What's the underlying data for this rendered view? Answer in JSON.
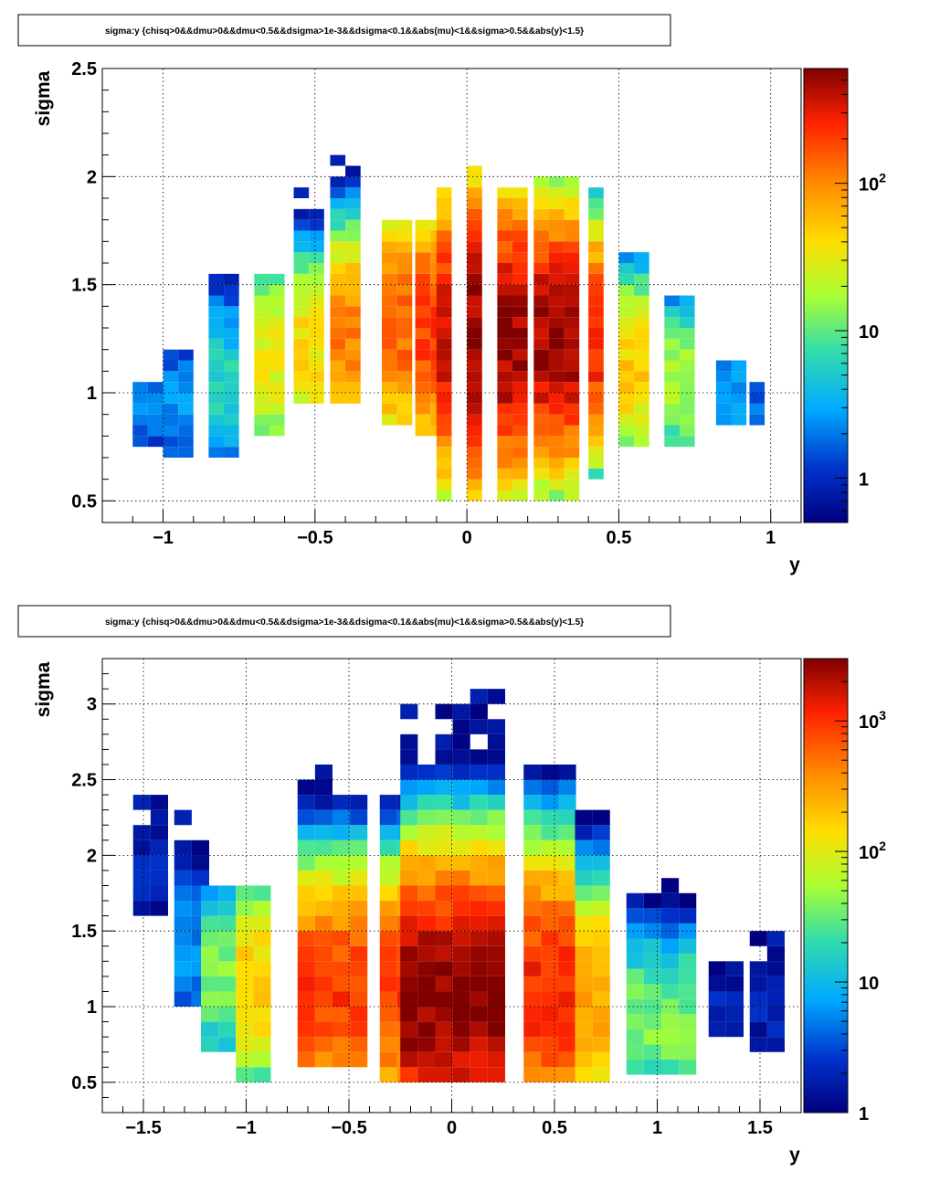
{
  "chart_data": [
    {
      "type": "heatmap",
      "title": "sigma:y {chisq>0&&dmu>0&&dmu<0.5&&dsigma>1e-3&&dsigma<0.1&&abs(mu)<1&&sigma>0.5&&abs(y)<1.5}",
      "xlabel": "y",
      "ylabel": "sigma",
      "xlim": [
        -1.2,
        1.1
      ],
      "ylim": [
        0.4,
        2.5
      ],
      "xticks": [
        -1,
        -0.5,
        0,
        0.5,
        1
      ],
      "xtick_labels": [
        "−1",
        "−0.5",
        "0",
        "0.5",
        "1"
      ],
      "yticks": [
        0.5,
        1,
        1.5,
        2,
        2.5
      ],
      "ytick_labels": [
        "0.5",
        "1",
        "1.5",
        "2",
        "2.5"
      ],
      "grid": true,
      "colorbar": {
        "scale": "log",
        "min": 0.5,
        "max": 600,
        "ticks": [
          1,
          10,
          100
        ],
        "tick_labels": [
          "1",
          "10",
          "10^2"
        ]
      },
      "bin_width": {
        "x": 0.05,
        "y": 0.05
      },
      "clusters": [
        {
          "x": -1.05,
          "x_range": [
            -1.1,
            -1.0
          ],
          "mean": 0.95,
          "sd": 0.2,
          "peak": 2,
          "y_range": [
            0.75,
            1.05
          ]
        },
        {
          "x": -0.95,
          "x_range": [
            -1.0,
            -0.9
          ],
          "mean": 0.95,
          "sd": 0.22,
          "peak": 2.5,
          "y_range": [
            0.7,
            1.2
          ]
        },
        {
          "x": -0.8,
          "x_range": [
            -0.85,
            -0.75
          ],
          "mean": 1.05,
          "sd": 0.25,
          "peak": 6,
          "y_range": [
            0.7,
            1.55
          ]
        },
        {
          "x": -0.65,
          "x_range": [
            -0.7,
            -0.6
          ],
          "mean": 1.15,
          "sd": 0.22,
          "peak": 35,
          "y_range": [
            0.8,
            1.55
          ]
        },
        {
          "x": -0.53,
          "x_range": [
            -0.57,
            -0.5
          ],
          "mean": 1.2,
          "sd": 0.22,
          "peak": 45,
          "y_range": [
            0.95,
            1.95
          ]
        },
        {
          "x": -0.4,
          "x_range": [
            -0.45,
            -0.35
          ],
          "mean": 1.25,
          "sd": 0.24,
          "peak": 110,
          "y_range": [
            0.95,
            2.1
          ]
        },
        {
          "x": -0.25,
          "x_range": [
            -0.28,
            -0.22
          ],
          "mean": 1.3,
          "sd": 0.26,
          "peak": 150,
          "y_range": [
            0.85,
            1.8
          ]
        },
        {
          "x": -0.15,
          "x_range": [
            -0.17,
            -0.1
          ],
          "mean": 1.3,
          "sd": 0.26,
          "peak": 220,
          "y_range": [
            0.8,
            1.8
          ]
        },
        {
          "x": -0.08,
          "x_range": [
            -0.1,
            -0.05
          ],
          "mean": 1.25,
          "sd": 0.3,
          "peak": 400,
          "y_range": [
            0.5,
            1.95
          ]
        },
        {
          "x": 0.03,
          "x_range": [
            0.0,
            0.05
          ],
          "mean": 1.25,
          "sd": 0.32,
          "peak": 600,
          "y_range": [
            0.5,
            2.05
          ]
        },
        {
          "x": 0.15,
          "x_range": [
            0.1,
            0.2
          ],
          "mean": 1.25,
          "sd": 0.3,
          "peak": 550,
          "y_range": [
            0.5,
            1.95
          ]
        },
        {
          "x": 0.28,
          "x_range": [
            0.22,
            0.35
          ],
          "mean": 1.25,
          "sd": 0.28,
          "peak": 500,
          "y_range": [
            0.5,
            2.0
          ]
        },
        {
          "x": 0.43,
          "x_range": [
            0.4,
            0.45
          ],
          "mean": 1.25,
          "sd": 0.24,
          "peak": 300,
          "y_range": [
            0.6,
            1.95
          ]
        },
        {
          "x": 0.55,
          "x_range": [
            0.5,
            0.6
          ],
          "mean": 1.1,
          "sd": 0.22,
          "peak": 50,
          "y_range": [
            0.75,
            1.65
          ]
        },
        {
          "x": 0.68,
          "x_range": [
            0.65,
            0.75
          ],
          "mean": 1.05,
          "sd": 0.2,
          "peak": 18,
          "y_range": [
            0.75,
            1.45
          ]
        },
        {
          "x": 0.85,
          "x_range": [
            0.82,
            0.88
          ],
          "mean": 1.0,
          "sd": 0.18,
          "peak": 3,
          "y_range": [
            0.85,
            1.15
          ]
        },
        {
          "x": 0.95,
          "x_range": [
            0.93,
            0.98
          ],
          "mean": 0.95,
          "sd": 0.15,
          "peak": 2,
          "y_range": [
            0.85,
            1.05
          ]
        }
      ]
    },
    {
      "type": "heatmap",
      "title": "sigma:y {chisq>0&&dmu>0&&dmu<0.5&&dsigma>1e-3&&dsigma<0.1&&abs(mu)<1&&sigma>0.5&&abs(y)<1.5}",
      "xlabel": "y",
      "ylabel": "sigma",
      "xlim": [
        -1.7,
        1.7
      ],
      "ylim": [
        0.3,
        3.3
      ],
      "xticks": [
        -1.5,
        -1,
        -0.5,
        0,
        0.5,
        1,
        1.5
      ],
      "xtick_labels": [
        "−1.5",
        "−1",
        "−0.5",
        "0",
        "0.5",
        "1",
        "1.5"
      ],
      "yticks": [
        0.5,
        1,
        1.5,
        2,
        2.5,
        3
      ],
      "ytick_labels": [
        "0.5",
        "1",
        "1.5",
        "2",
        "2.5",
        "3"
      ],
      "grid": true,
      "colorbar": {
        "scale": "log",
        "min": 1,
        "max": 3000,
        "ticks": [
          10,
          100,
          1000
        ],
        "tick_labels": [
          "10",
          "10^2",
          "10^3"
        ],
        "bottom_label": "1"
      },
      "bin_width": {
        "x": 0.085,
        "y": 0.1
      },
      "clusters": [
        {
          "x": -1.5,
          "x_range": [
            -1.55,
            -1.45
          ],
          "mean": 1.9,
          "sd": 0.3,
          "peak": 2,
          "y_range": [
            1.6,
            2.4
          ]
        },
        {
          "x": -1.3,
          "x_range": [
            -1.35,
            -1.25
          ],
          "mean": 1.4,
          "sd": 0.35,
          "peak": 6,
          "y_range": [
            1.0,
            2.3
          ]
        },
        {
          "x": -1.13,
          "x_range": [
            -1.22,
            -1.05
          ],
          "mean": 1.2,
          "sd": 0.3,
          "peak": 40,
          "y_range": [
            0.7,
            1.8
          ]
        },
        {
          "x": -0.95,
          "x_range": [
            -1.05,
            -0.88
          ],
          "mean": 1.15,
          "sd": 0.3,
          "peak": 200,
          "y_range": [
            0.5,
            1.8
          ]
        },
        {
          "x": -0.6,
          "x_range": [
            -0.75,
            -0.47
          ],
          "mean": 1.1,
          "sd": 0.35,
          "peak": 1000,
          "y_range": [
            0.6,
            2.6
          ]
        },
        {
          "x": -0.3,
          "x_range": [
            -0.35,
            -0.25
          ],
          "mean": 1.1,
          "sd": 0.35,
          "peak": 1000,
          "y_range": [
            0.5,
            2.4
          ]
        },
        {
          "x": 0.0,
          "x_range": [
            -0.25,
            0.25
          ],
          "mean": 1.05,
          "sd": 0.4,
          "peak": 3000,
          "y_range": [
            0.5,
            3.05
          ]
        },
        {
          "x": 0.45,
          "x_range": [
            0.35,
            0.55
          ],
          "mean": 1.1,
          "sd": 0.4,
          "peak": 1200,
          "y_range": [
            0.5,
            2.6
          ]
        },
        {
          "x": 0.7,
          "x_range": [
            0.6,
            0.75
          ],
          "mean": 1.05,
          "sd": 0.35,
          "peak": 300,
          "y_range": [
            0.5,
            2.3
          ]
        },
        {
          "x": 1.0,
          "x_range": [
            0.85,
            1.15
          ],
          "mean": 0.9,
          "sd": 0.3,
          "peak": 40,
          "y_range": [
            0.55,
            1.8
          ]
        },
        {
          "x": 1.3,
          "x_range": [
            1.25,
            1.35
          ],
          "mean": 1.0,
          "sd": 0.25,
          "peak": 2,
          "y_range": [
            0.8,
            1.3
          ]
        },
        {
          "x": 1.5,
          "x_range": [
            1.45,
            1.55
          ],
          "mean": 1.0,
          "sd": 0.3,
          "peak": 2,
          "y_range": [
            0.7,
            1.5
          ]
        }
      ]
    }
  ]
}
